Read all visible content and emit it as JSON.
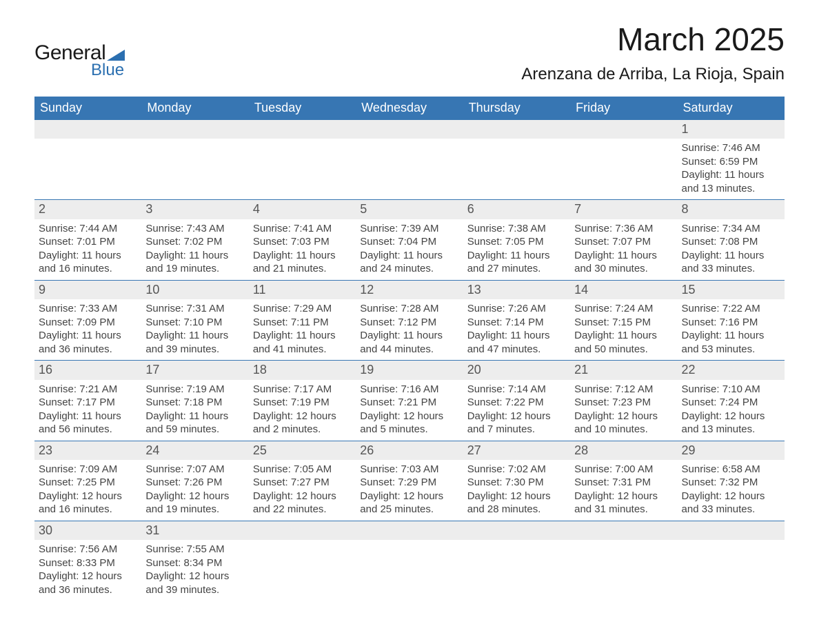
{
  "logo": {
    "text": "General",
    "sub": "Blue"
  },
  "title": "March 2025",
  "location": "Arenzana de Arriba, La Rioja, Spain",
  "colors": {
    "header_bg": "#3776b3",
    "header_text": "#ffffff",
    "daynum_bg": "#ededed",
    "text": "#333333",
    "logo_blue": "#2b6fb0"
  },
  "day_headers": [
    "Sunday",
    "Monday",
    "Tuesday",
    "Wednesday",
    "Thursday",
    "Friday",
    "Saturday"
  ],
  "weeks": [
    [
      null,
      null,
      null,
      null,
      null,
      null,
      {
        "n": "1",
        "sunrise": "Sunrise: 7:46 AM",
        "sunset": "Sunset: 6:59 PM",
        "dl1": "Daylight: 11 hours",
        "dl2": "and 13 minutes."
      }
    ],
    [
      {
        "n": "2",
        "sunrise": "Sunrise: 7:44 AM",
        "sunset": "Sunset: 7:01 PM",
        "dl1": "Daylight: 11 hours",
        "dl2": "and 16 minutes."
      },
      {
        "n": "3",
        "sunrise": "Sunrise: 7:43 AM",
        "sunset": "Sunset: 7:02 PM",
        "dl1": "Daylight: 11 hours",
        "dl2": "and 19 minutes."
      },
      {
        "n": "4",
        "sunrise": "Sunrise: 7:41 AM",
        "sunset": "Sunset: 7:03 PM",
        "dl1": "Daylight: 11 hours",
        "dl2": "and 21 minutes."
      },
      {
        "n": "5",
        "sunrise": "Sunrise: 7:39 AM",
        "sunset": "Sunset: 7:04 PM",
        "dl1": "Daylight: 11 hours",
        "dl2": "and 24 minutes."
      },
      {
        "n": "6",
        "sunrise": "Sunrise: 7:38 AM",
        "sunset": "Sunset: 7:05 PM",
        "dl1": "Daylight: 11 hours",
        "dl2": "and 27 minutes."
      },
      {
        "n": "7",
        "sunrise": "Sunrise: 7:36 AM",
        "sunset": "Sunset: 7:07 PM",
        "dl1": "Daylight: 11 hours",
        "dl2": "and 30 minutes."
      },
      {
        "n": "8",
        "sunrise": "Sunrise: 7:34 AM",
        "sunset": "Sunset: 7:08 PM",
        "dl1": "Daylight: 11 hours",
        "dl2": "and 33 minutes."
      }
    ],
    [
      {
        "n": "9",
        "sunrise": "Sunrise: 7:33 AM",
        "sunset": "Sunset: 7:09 PM",
        "dl1": "Daylight: 11 hours",
        "dl2": "and 36 minutes."
      },
      {
        "n": "10",
        "sunrise": "Sunrise: 7:31 AM",
        "sunset": "Sunset: 7:10 PM",
        "dl1": "Daylight: 11 hours",
        "dl2": "and 39 minutes."
      },
      {
        "n": "11",
        "sunrise": "Sunrise: 7:29 AM",
        "sunset": "Sunset: 7:11 PM",
        "dl1": "Daylight: 11 hours",
        "dl2": "and 41 minutes."
      },
      {
        "n": "12",
        "sunrise": "Sunrise: 7:28 AM",
        "sunset": "Sunset: 7:12 PM",
        "dl1": "Daylight: 11 hours",
        "dl2": "and 44 minutes."
      },
      {
        "n": "13",
        "sunrise": "Sunrise: 7:26 AM",
        "sunset": "Sunset: 7:14 PM",
        "dl1": "Daylight: 11 hours",
        "dl2": "and 47 minutes."
      },
      {
        "n": "14",
        "sunrise": "Sunrise: 7:24 AM",
        "sunset": "Sunset: 7:15 PM",
        "dl1": "Daylight: 11 hours",
        "dl2": "and 50 minutes."
      },
      {
        "n": "15",
        "sunrise": "Sunrise: 7:22 AM",
        "sunset": "Sunset: 7:16 PM",
        "dl1": "Daylight: 11 hours",
        "dl2": "and 53 minutes."
      }
    ],
    [
      {
        "n": "16",
        "sunrise": "Sunrise: 7:21 AM",
        "sunset": "Sunset: 7:17 PM",
        "dl1": "Daylight: 11 hours",
        "dl2": "and 56 minutes."
      },
      {
        "n": "17",
        "sunrise": "Sunrise: 7:19 AM",
        "sunset": "Sunset: 7:18 PM",
        "dl1": "Daylight: 11 hours",
        "dl2": "and 59 minutes."
      },
      {
        "n": "18",
        "sunrise": "Sunrise: 7:17 AM",
        "sunset": "Sunset: 7:19 PM",
        "dl1": "Daylight: 12 hours",
        "dl2": "and 2 minutes."
      },
      {
        "n": "19",
        "sunrise": "Sunrise: 7:16 AM",
        "sunset": "Sunset: 7:21 PM",
        "dl1": "Daylight: 12 hours",
        "dl2": "and 5 minutes."
      },
      {
        "n": "20",
        "sunrise": "Sunrise: 7:14 AM",
        "sunset": "Sunset: 7:22 PM",
        "dl1": "Daylight: 12 hours",
        "dl2": "and 7 minutes."
      },
      {
        "n": "21",
        "sunrise": "Sunrise: 7:12 AM",
        "sunset": "Sunset: 7:23 PM",
        "dl1": "Daylight: 12 hours",
        "dl2": "and 10 minutes."
      },
      {
        "n": "22",
        "sunrise": "Sunrise: 7:10 AM",
        "sunset": "Sunset: 7:24 PM",
        "dl1": "Daylight: 12 hours",
        "dl2": "and 13 minutes."
      }
    ],
    [
      {
        "n": "23",
        "sunrise": "Sunrise: 7:09 AM",
        "sunset": "Sunset: 7:25 PM",
        "dl1": "Daylight: 12 hours",
        "dl2": "and 16 minutes."
      },
      {
        "n": "24",
        "sunrise": "Sunrise: 7:07 AM",
        "sunset": "Sunset: 7:26 PM",
        "dl1": "Daylight: 12 hours",
        "dl2": "and 19 minutes."
      },
      {
        "n": "25",
        "sunrise": "Sunrise: 7:05 AM",
        "sunset": "Sunset: 7:27 PM",
        "dl1": "Daylight: 12 hours",
        "dl2": "and 22 minutes."
      },
      {
        "n": "26",
        "sunrise": "Sunrise: 7:03 AM",
        "sunset": "Sunset: 7:29 PM",
        "dl1": "Daylight: 12 hours",
        "dl2": "and 25 minutes."
      },
      {
        "n": "27",
        "sunrise": "Sunrise: 7:02 AM",
        "sunset": "Sunset: 7:30 PM",
        "dl1": "Daylight: 12 hours",
        "dl2": "and 28 minutes."
      },
      {
        "n": "28",
        "sunrise": "Sunrise: 7:00 AM",
        "sunset": "Sunset: 7:31 PM",
        "dl1": "Daylight: 12 hours",
        "dl2": "and 31 minutes."
      },
      {
        "n": "29",
        "sunrise": "Sunrise: 6:58 AM",
        "sunset": "Sunset: 7:32 PM",
        "dl1": "Daylight: 12 hours",
        "dl2": "and 33 minutes."
      }
    ],
    [
      {
        "n": "30",
        "sunrise": "Sunrise: 7:56 AM",
        "sunset": "Sunset: 8:33 PM",
        "dl1": "Daylight: 12 hours",
        "dl2": "and 36 minutes."
      },
      {
        "n": "31",
        "sunrise": "Sunrise: 7:55 AM",
        "sunset": "Sunset: 8:34 PM",
        "dl1": "Daylight: 12 hours",
        "dl2": "and 39 minutes."
      },
      null,
      null,
      null,
      null,
      null
    ]
  ]
}
